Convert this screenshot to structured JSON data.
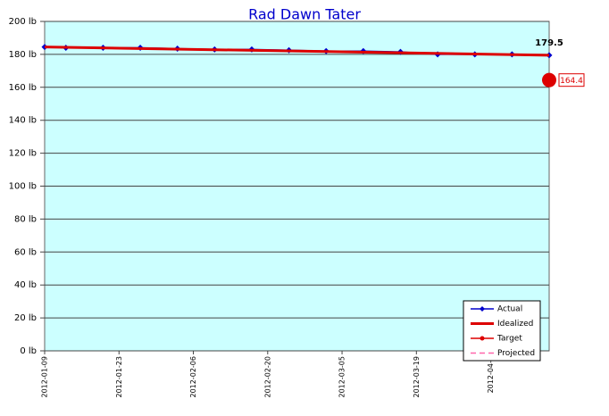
{
  "chart_data": {
    "type": "line",
    "title": "Rad Dawn Tater",
    "x": [
      "2012-01-09",
      "2012-01-13",
      "2012-01-20",
      "2012-01-27",
      "2012-02-03",
      "2012-02-10",
      "2012-02-17",
      "2012-02-24",
      "2012-03-02",
      "2012-03-09",
      "2012-03-16",
      "2012-03-23",
      "2012-03-30",
      "2012-04-06",
      "2012-04-13"
    ],
    "series": [
      {
        "name": "Actual",
        "color": "#0000cc",
        "values": [
          184.5,
          184,
          184,
          184,
          183.5,
          183,
          183,
          182.5,
          182,
          182,
          181.5,
          180,
          180,
          180,
          179.5
        ]
      },
      {
        "name": "Idealized",
        "color": "#dd0000",
        "x": [
          "2012-01-09",
          "2012-04-13"
        ],
        "values": [
          184.5,
          179.5
        ]
      },
      {
        "name": "Target",
        "color": "#dd0000",
        "x": [
          "2012-04-13"
        ],
        "values": [
          164.4
        ]
      },
      {
        "name": "Projected",
        "color": "#ff66aa",
        "x": [],
        "values": []
      }
    ],
    "xlim": [
      "2012-01-09",
      "2012-04-13"
    ],
    "xticks": [
      "2012-01-09",
      "2012-01-23",
      "2012-02-06",
      "2012-02-20",
      "2012-03-05",
      "2012-03-19",
      {
        "value": "2012-04-02",
        "label": "2012-04-0"
      }
    ],
    "ylim": [
      0,
      200
    ],
    "yticks": [
      {
        "value": 0,
        "label": "0 lb"
      },
      {
        "value": 20,
        "label": "20 lb"
      },
      {
        "value": 40,
        "label": "40 lb"
      },
      {
        "value": 60,
        "label": "60 lb"
      },
      {
        "value": 80,
        "label": "80 lb"
      },
      {
        "value": 100,
        "label": "100 lb"
      },
      {
        "value": 120,
        "label": "120 lb"
      },
      {
        "value": 140,
        "label": "140 lb"
      },
      {
        "value": 160,
        "label": "160 lb"
      },
      {
        "value": 180,
        "label": "180 lb"
      },
      {
        "value": 200,
        "label": "200 lb"
      }
    ],
    "grid": true
  }
}
